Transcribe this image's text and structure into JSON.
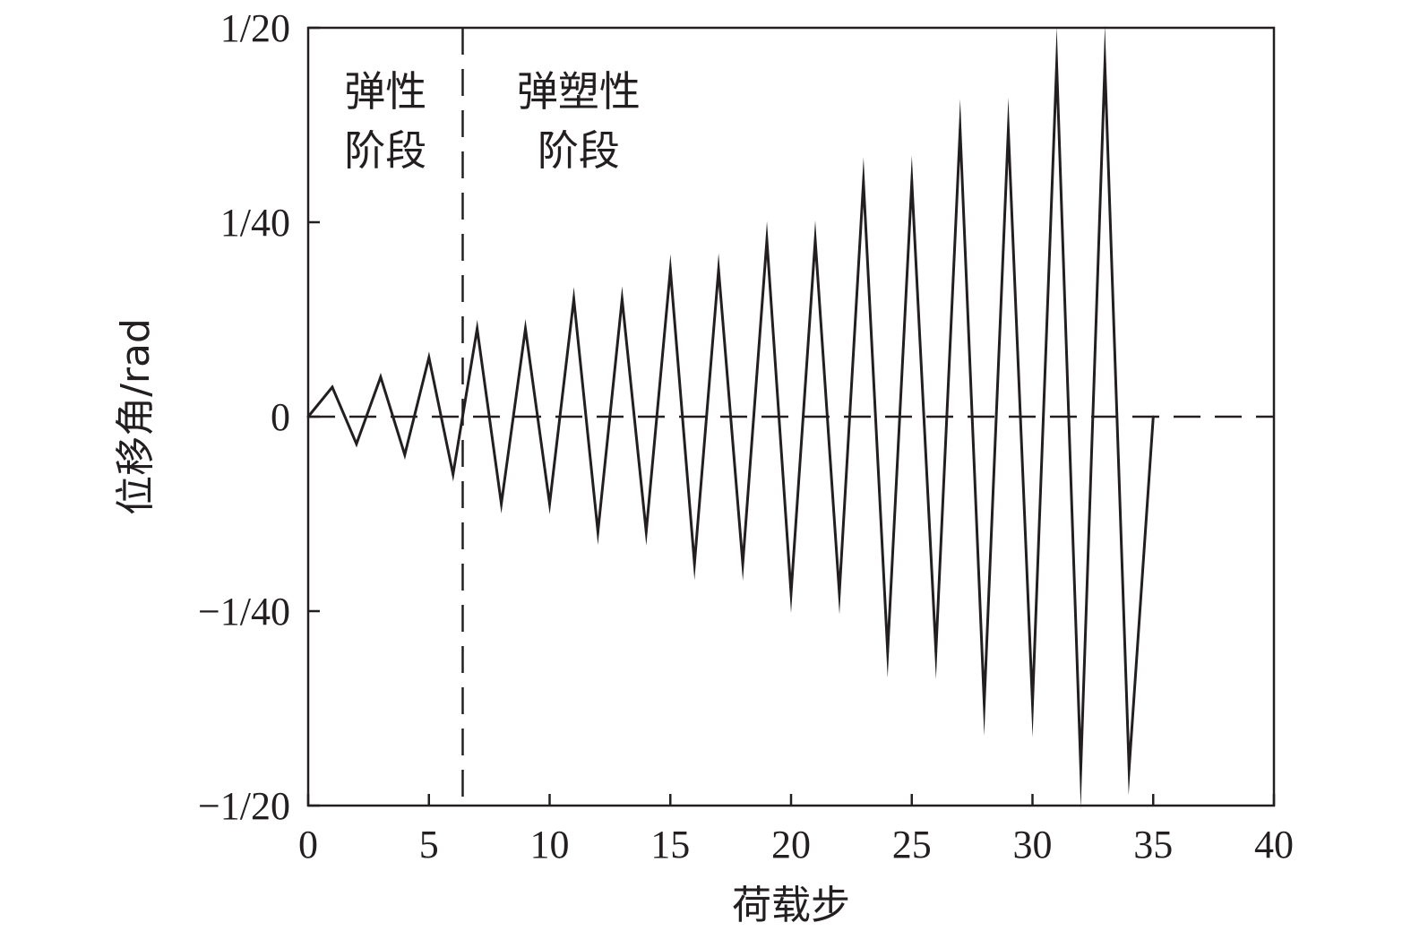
{
  "chart_data": {
    "type": "line",
    "title": "",
    "xlabel": "荷载步",
    "ylabel": "位移角/rad",
    "xlim": [
      0,
      40
    ],
    "ylim": [
      -0.05,
      0.05
    ],
    "x_ticks": [
      0,
      5,
      10,
      15,
      20,
      25,
      30,
      35,
      40
    ],
    "x_tick_labels": [
      "0",
      "5",
      "10",
      "15",
      "20",
      "25",
      "30",
      "35",
      "40"
    ],
    "y_ticks": [
      0.05,
      0.025,
      0,
      -0.025,
      -0.05
    ],
    "y_tick_labels": [
      "1/20",
      "1/40",
      "0",
      "−1/40",
      "−1/20"
    ],
    "grid": false,
    "reference_lines": [
      {
        "orientation": "horizontal",
        "value": 0,
        "style": "dashed"
      },
      {
        "orientation": "vertical",
        "value": 6.4,
        "style": "dashed"
      }
    ],
    "annotations": [
      {
        "lines": [
          "弹性",
          "阶段"
        ],
        "x": 3.2,
        "y": 0.04
      },
      {
        "lines": [
          "弹塑性",
          "阶段"
        ],
        "x": 11.2,
        "y": 0.04
      }
    ],
    "series": [
      {
        "x": [
          0,
          1,
          2,
          3,
          4,
          5,
          6,
          7,
          8,
          9,
          10,
          11,
          12,
          13,
          14,
          15,
          16,
          17,
          18,
          19,
          20,
          21,
          22,
          23,
          24,
          25,
          26,
          27,
          28,
          29,
          30,
          31,
          32,
          33,
          34,
          35
        ],
        "values": [
          0,
          0.0038,
          -0.0035,
          0.0051,
          -0.0049,
          0.0076,
          -0.0074,
          0.0113,
          -0.0112,
          0.0113,
          -0.0112,
          0.0151,
          -0.0148,
          0.0151,
          -0.0148,
          0.0189,
          -0.0189,
          0.0189,
          -0.0189,
          0.0227,
          -0.0227,
          0.0227,
          -0.0227,
          0.0302,
          -0.0302,
          0.0302,
          -0.0302,
          0.0369,
          -0.0369,
          0.0369,
          -0.0369,
          0.0453,
          -0.0453,
          0.0453,
          -0.0453,
          0
        ],
        "color": "#231f20"
      }
    ]
  }
}
